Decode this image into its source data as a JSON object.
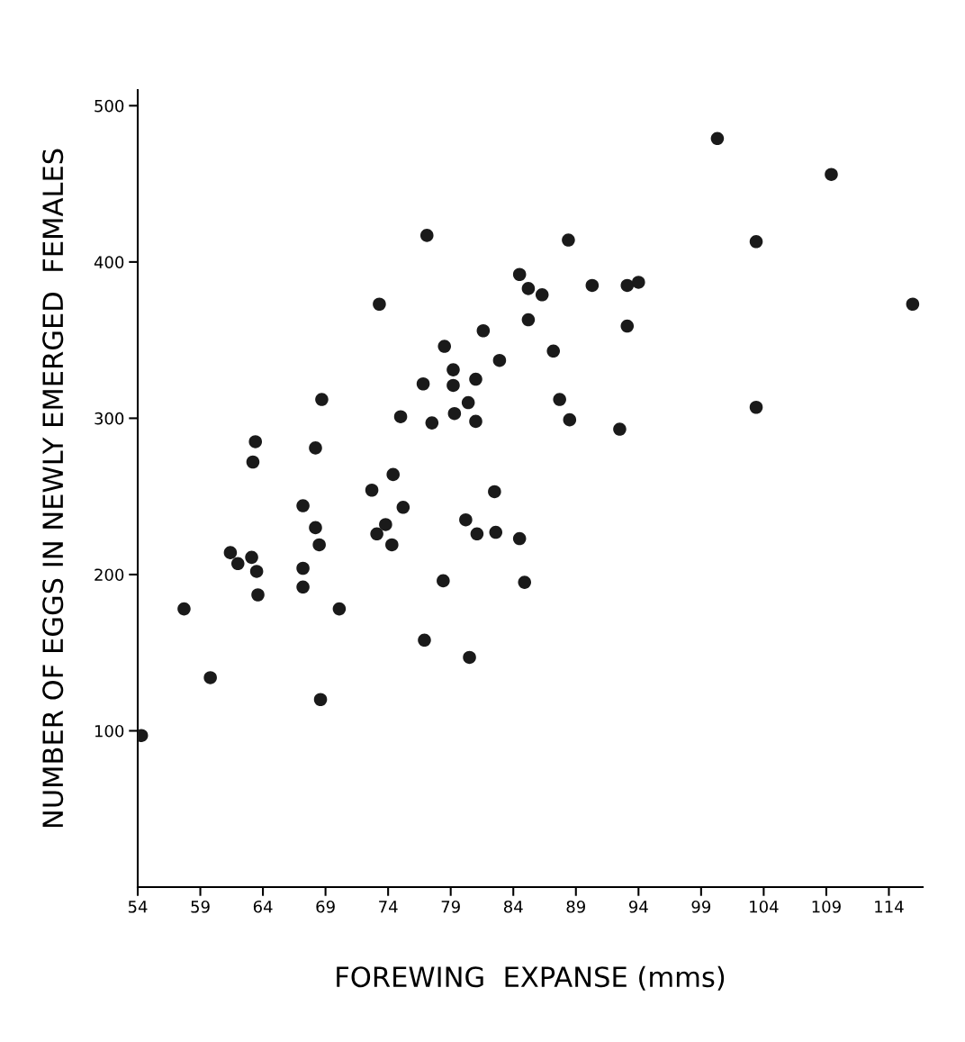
{
  "chart_data": {
    "type": "scatter",
    "xlabel": "FOREWING  EXPANSE (mms)",
    "ylabel": "NUMBER OF EGGS IN NEWLY EMERGED  FEMALES",
    "xlim": [
      54,
      116.7
    ],
    "ylim": [
      0,
      510
    ],
    "xticks": [
      54,
      59,
      64,
      69,
      74,
      79,
      84,
      89,
      94,
      99,
      104,
      109,
      114
    ],
    "yticks": [
      100,
      200,
      300,
      400,
      500
    ],
    "grid": false,
    "marker": "circle",
    "series": [
      {
        "color": "#1a1a1a",
        "x": [
          54.3,
          57.7,
          59.8,
          61.4,
          62.0,
          63.1,
          63.5,
          63.6,
          63.2,
          63.4,
          67.2,
          67.2,
          67.2,
          68.2,
          68.2,
          68.5,
          68.7,
          68.6,
          70.1,
          72.7,
          73.1,
          73.3,
          73.8,
          74.3,
          74.4,
          75.2,
          75.0,
          76.8,
          77.1,
          76.9,
          77.5,
          78.4,
          78.5,
          79.2,
          79.2,
          79.3,
          80.2,
          80.4,
          80.5,
          81.0,
          81.0,
          81.1,
          81.6,
          82.5,
          82.6,
          82.9,
          84.5,
          84.5,
          84.9,
          85.2,
          85.2,
          86.3,
          87.2,
          87.7,
          88.4,
          88.5,
          90.3,
          92.5,
          93.1,
          93.1,
          94.0,
          100.3,
          103.4,
          103.4,
          109.4,
          115.9
        ],
        "values": [
          97,
          178,
          134,
          214,
          207,
          211,
          202,
          187,
          272,
          285,
          204,
          192,
          244,
          281,
          230,
          219,
          312,
          120,
          178,
          254,
          226,
          373,
          232,
          219,
          264,
          243,
          301,
          322,
          417,
          158,
          297,
          196,
          346,
          331,
          321,
          303,
          235,
          310,
          147,
          325,
          298,
          226,
          356,
          253,
          227,
          337,
          392,
          223,
          195,
          383,
          363,
          379,
          343,
          312,
          414,
          299,
          385,
          293,
          385,
          359,
          387,
          479,
          413,
          307,
          456,
          373
        ]
      }
    ]
  }
}
